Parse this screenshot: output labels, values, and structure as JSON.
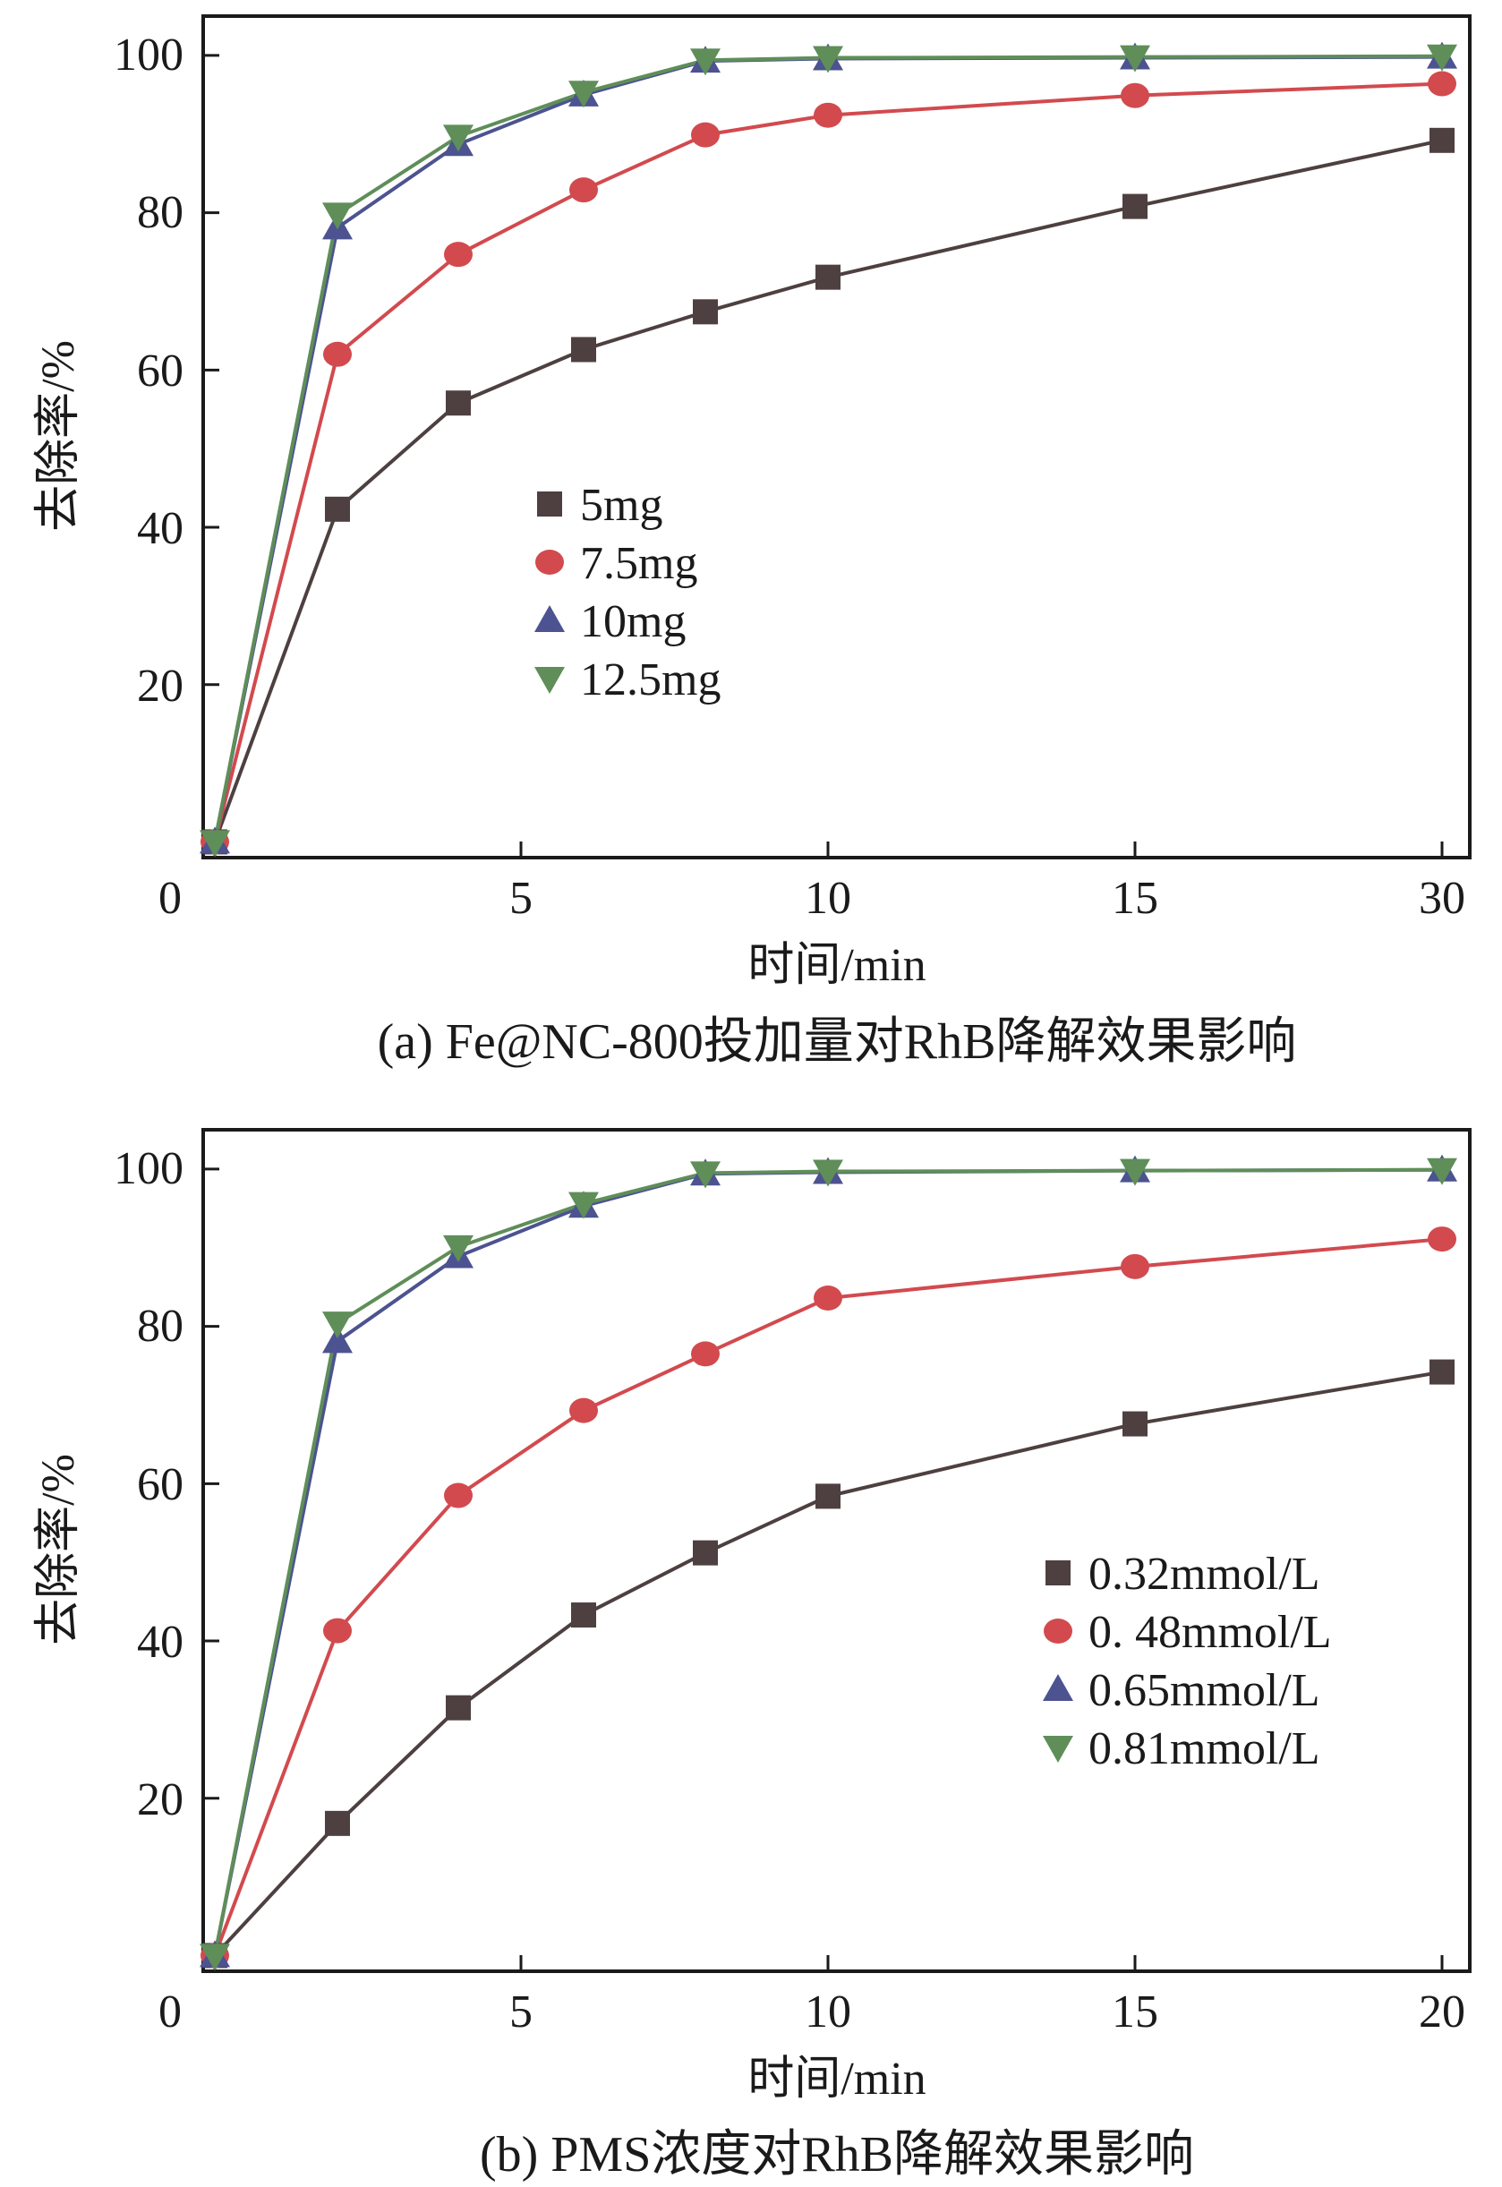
{
  "colors": {
    "s1": "#4e4040",
    "s2": "#d24a4e",
    "s3": "#4c5390",
    "s4": "#5f8e59",
    "axis": "#1a1a1a"
  },
  "chart_data": [
    {
      "type": "line",
      "caption": "(a) Fe@NC-800投加量对RhB降解效果影响",
      "xlabel": "时间/min",
      "ylabel": "去除率/%",
      "x_ticks": [
        "0",
        "5",
        "10",
        "15",
        "30"
      ],
      "y_ticks": [
        "20",
        "40",
        "60",
        "80",
        "100"
      ],
      "ylim": [
        -2,
        105
      ],
      "legend_position": "middle-left",
      "x_positions": [
        0,
        1,
        2,
        3,
        4,
        5,
        6,
        7
      ],
      "x_note": "categorical time points: 0, 2, 4, 6, 8, 10, 15, 30 min",
      "series": [
        {
          "name": "5mg",
          "marker": "square",
          "color": "#4e4040",
          "values": [
            0,
            42.3,
            55.8,
            62.6,
            67.4,
            71.8,
            80.8,
            89.2
          ]
        },
        {
          "name": "7.5mg",
          "marker": "circle",
          "color": "#d24a4e",
          "values": [
            0,
            62.0,
            74.7,
            82.9,
            89.9,
            92.4,
            94.9,
            96.4
          ]
        },
        {
          "name": "10mg",
          "marker": "triangle-up",
          "color": "#4c5390",
          "values": [
            0,
            78.1,
            88.7,
            95.0,
            99.3,
            99.6,
            99.7,
            99.8
          ]
        },
        {
          "name": "12.5mg",
          "marker": "triangle-down",
          "color": "#5f8e59",
          "values": [
            0,
            79.8,
            89.7,
            95.3,
            99.4,
            99.7,
            99.8,
            99.9
          ]
        }
      ]
    },
    {
      "type": "line",
      "caption": "(b) PMS浓度对RhB降解效果影响",
      "xlabel": "时间/min",
      "ylabel": "去除率/%",
      "x_ticks": [
        "0",
        "5",
        "10",
        "15",
        "20"
      ],
      "y_ticks": [
        "20",
        "40",
        "60",
        "80",
        "100"
      ],
      "ylim": [
        -2,
        105
      ],
      "legend_position": "middle-right",
      "x_positions": [
        0,
        1,
        2,
        3,
        4,
        5,
        6,
        7
      ],
      "x_note": "categorical time points: 0, 2, 4, 6, 8, 10, 15, 20 min",
      "series": [
        {
          "name": "0.32mmol/L",
          "marker": "square",
          "color": "#4e4040",
          "values": [
            0,
            16.8,
            31.5,
            43.3,
            51.2,
            58.4,
            67.6,
            74.2
          ]
        },
        {
          "name": "0. 48mmol/L",
          "marker": "circle",
          "color": "#d24a4e",
          "values": [
            0,
            41.3,
            58.5,
            69.3,
            76.5,
            83.6,
            87.6,
            91.1
          ]
        },
        {
          "name": "0.65mmol/L",
          "marker": "triangle-up",
          "color": "#4c5390",
          "values": [
            0,
            78.1,
            88.9,
            95.3,
            99.4,
            99.6,
            99.8,
            99.9
          ]
        },
        {
          "name": "0.81mmol/L",
          "marker": "triangle-down",
          "color": "#5f8e59",
          "values": [
            0,
            80.4,
            90.1,
            95.6,
            99.5,
            99.7,
            99.8,
            99.9
          ]
        }
      ]
    }
  ]
}
